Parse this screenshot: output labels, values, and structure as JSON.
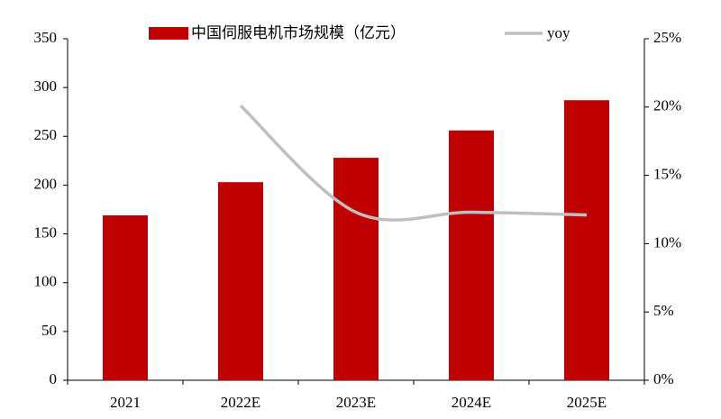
{
  "chart_data": {
    "type": "bar",
    "categories": [
      "2021",
      "2022E",
      "2023E",
      "2024E",
      "2025E"
    ],
    "series": [
      {
        "name": "中国伺服电机市场规模（亿元）",
        "type": "bar",
        "color": "#c00000",
        "values": [
          169,
          203,
          228,
          256,
          287
        ]
      },
      {
        "name": "yoy",
        "type": "line",
        "axis": "y2",
        "color": "#bfbfbf",
        "values": [
          null,
          20.1,
          12.3,
          12.3,
          12.1
        ]
      }
    ],
    "ylim": [
      0,
      350
    ],
    "yticks": [
      0,
      50,
      100,
      150,
      200,
      250,
      300,
      350
    ],
    "y2lim": [
      0,
      25
    ],
    "y2ticks": [
      {
        "value": 0,
        "label": "0%"
      },
      {
        "value": 5,
        "label": "5%"
      },
      {
        "value": 10,
        "label": "10%"
      },
      {
        "value": 15,
        "label": "15%"
      },
      {
        "value": 20,
        "label": "20%"
      },
      {
        "value": 25,
        "label": "25%"
      }
    ],
    "grid": false,
    "legend": "top"
  }
}
